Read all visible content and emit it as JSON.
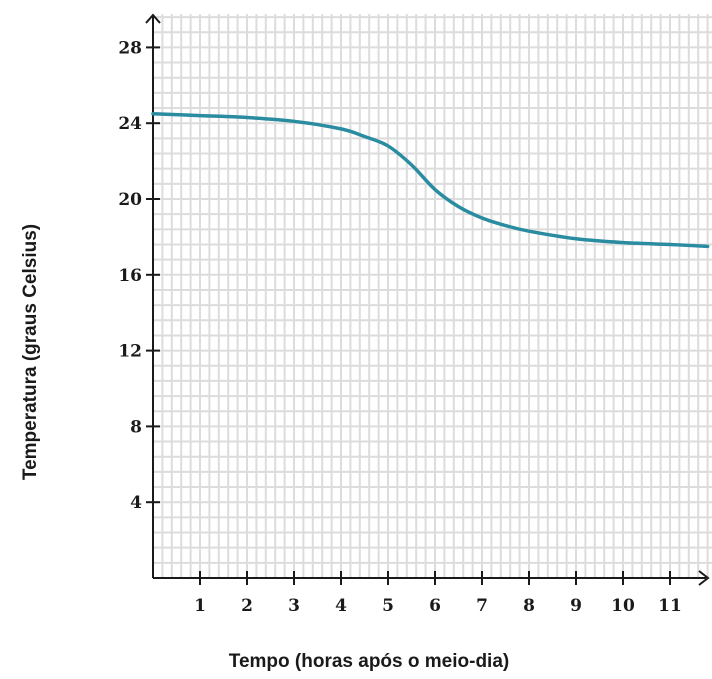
{
  "chart_data": {
    "type": "line",
    "xlabel": "Tempo (horas após o meio-dia)",
    "ylabel": "Temperatura (graus Celsius)",
    "xlim": [
      0,
      11.8
    ],
    "ylim": [
      0,
      29.5
    ],
    "x_ticks": [
      1,
      2,
      3,
      4,
      5,
      6,
      7,
      8,
      9,
      10,
      11
    ],
    "y_ticks": [
      4,
      8,
      12,
      16,
      20,
      24,
      28
    ],
    "grid": true,
    "minor_grid_step_x": 0.2,
    "minor_grid_step_y": 0.8,
    "series": [
      {
        "color": "#2a8ca0",
        "x": [
          0,
          1,
          2,
          3,
          4,
          4.5,
          5,
          5.5,
          6,
          6.5,
          7,
          7.5,
          8,
          9,
          10,
          11,
          11.8
        ],
        "values": [
          24.5,
          24.4,
          24.3,
          24.1,
          23.7,
          23.3,
          22.8,
          21.8,
          20.5,
          19.6,
          19.0,
          18.6,
          18.3,
          17.9,
          17.7,
          17.6,
          17.5
        ]
      }
    ]
  }
}
